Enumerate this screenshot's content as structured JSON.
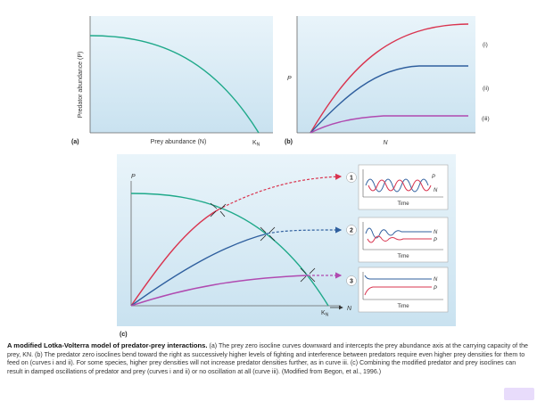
{
  "panel_a": {
    "letter": "(a)",
    "ylabel": "Predator abundance (P)",
    "xlabel": "Prey abundance (N)",
    "k_label": "K",
    "k_sub": "N"
  },
  "panel_b": {
    "letter": "(b)",
    "ylabel": "P",
    "xlabel": "N",
    "curve_labels": [
      "(i)",
      "(ii)",
      "(iii)"
    ]
  },
  "panel_c": {
    "letter": "(c)",
    "ylabel": "P",
    "xlabel": "N",
    "k_label": "K",
    "k_sub": "N",
    "insets": [
      {
        "number": "1",
        "time_label": "Time",
        "p_label": "P",
        "n_label": "N"
      },
      {
        "number": "2",
        "time_label": "Time",
        "p_label": "P",
        "n_label": "N"
      },
      {
        "number": "3",
        "time_label": "Time",
        "p_label": "P",
        "n_label": "N"
      }
    ]
  },
  "caption": {
    "title": "A modified Lotka-Volterra model of predator-prey interactions.",
    "body": "(a) The prey zero isocline curves downward and intercepts the prey abundance axis at the carrying capacity of the prey, KN. (b) The predator zero isoclines bend toward the right as successively higher levels of fighting and interference between predators require even higher prey densities for them to feed on (curves i and ii). For some species, higher prey densities will not increase predator densities further, as in curve iii. (c) Combining the modified predator and prey isoclines can result in damped oscillations of predator and prey (curves i and ii) or no oscillation at all (curve iii). (Modified from Begon, et al., 1996.)"
  },
  "colors": {
    "prey_isocline": "#1fa98a",
    "curve_i": "#d9344f",
    "curve_ii": "#2f5f9e",
    "curve_iii": "#b04ab0",
    "panel_bg": "#cfe6f3",
    "inset_bg": "#ffffff"
  }
}
